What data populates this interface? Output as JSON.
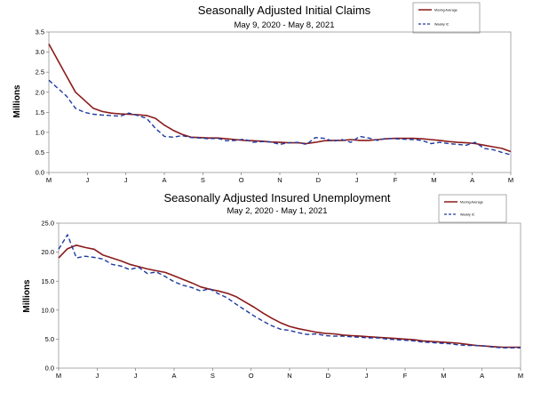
{
  "chart_data": [
    {
      "type": "line",
      "title": "Seasonally Adjusted Initial Claims",
      "subtitle": "May 9, 2020 - May 8, 2021",
      "xlabel": "",
      "ylabel": "Millions",
      "ylim": [
        0,
        3.5
      ],
      "yticks": [
        "0.0",
        "0.5",
        "1.0",
        "1.5",
        "2.0",
        "2.5",
        "3.0",
        "3.5"
      ],
      "ytick_values": [
        0,
        0.5,
        1.0,
        1.5,
        2.0,
        2.5,
        3.0,
        3.5
      ],
      "xticks": [
        "M",
        "J",
        "J",
        "A",
        "S",
        "O",
        "N",
        "D",
        "J",
        "F",
        "M",
        "A",
        "M"
      ],
      "xlim": [
        0,
        52
      ],
      "grid": false,
      "legend": "top-right",
      "colors": {
        "moving_average": "#8b1a1a",
        "weekly": "#1f3a9e"
      },
      "series": [
        {
          "name": "Moving Average",
          "style": "solid",
          "color": "#8b1a1a",
          "x": [
            0,
            1,
            2,
            3,
            4,
            5,
            6,
            7,
            8,
            9,
            10,
            11,
            12,
            13,
            14,
            15,
            16,
            17,
            18,
            19,
            20,
            21,
            22,
            23,
            24,
            25,
            26,
            27,
            28,
            29,
            30,
            31,
            32,
            33,
            34,
            35,
            36,
            37,
            38,
            39,
            40,
            41,
            42,
            43,
            44,
            45,
            46,
            47,
            48,
            49,
            50,
            51,
            52
          ],
          "values": [
            3.2,
            2.8,
            2.4,
            2.0,
            1.8,
            1.6,
            1.52,
            1.48,
            1.46,
            1.45,
            1.44,
            1.42,
            1.35,
            1.18,
            1.05,
            0.95,
            0.88,
            0.87,
            0.86,
            0.86,
            0.84,
            0.82,
            0.8,
            0.79,
            0.78,
            0.76,
            0.75,
            0.74,
            0.74,
            0.72,
            0.75,
            0.79,
            0.8,
            0.8,
            0.82,
            0.8,
            0.8,
            0.82,
            0.84,
            0.85,
            0.85,
            0.85,
            0.84,
            0.82,
            0.8,
            0.77,
            0.75,
            0.74,
            0.72,
            0.68,
            0.64,
            0.6,
            0.52
          ]
        },
        {
          "name": "Weekly IC",
          "style": "dashed",
          "color": "#1f3a9e",
          "x": [
            0,
            1,
            2,
            3,
            4,
            5,
            6,
            7,
            8,
            9,
            10,
            11,
            12,
            13,
            14,
            15,
            16,
            17,
            18,
            19,
            20,
            21,
            22,
            23,
            24,
            25,
            26,
            27,
            28,
            29,
            30,
            31,
            32,
            33,
            34,
            35,
            36,
            37,
            38,
            39,
            40,
            41,
            42,
            43,
            44,
            45,
            46,
            47,
            48,
            49,
            50,
            51,
            52
          ],
          "values": [
            2.3,
            2.1,
            1.9,
            1.6,
            1.5,
            1.45,
            1.43,
            1.42,
            1.4,
            1.48,
            1.42,
            1.35,
            1.1,
            0.9,
            0.88,
            0.92,
            0.87,
            0.86,
            0.84,
            0.85,
            0.79,
            0.8,
            0.83,
            0.75,
            0.77,
            0.76,
            0.7,
            0.74,
            0.75,
            0.7,
            0.87,
            0.85,
            0.78,
            0.82,
            0.75,
            0.9,
            0.86,
            0.8,
            0.85,
            0.84,
            0.83,
            0.82,
            0.8,
            0.72,
            0.75,
            0.72,
            0.7,
            0.68,
            0.75,
            0.6,
            0.57,
            0.5,
            0.44
          ]
        }
      ]
    },
    {
      "type": "line",
      "title": "Seasonally Adjusted Insured Unemployment",
      "subtitle": "May 2, 2020 - May 1, 2021",
      "xlabel": "",
      "ylabel": "Millions",
      "ylim": [
        0,
        25
      ],
      "yticks": [
        "0.0",
        "5.0",
        "10.0",
        "15.0",
        "20.0",
        "25.0"
      ],
      "ytick_values": [
        0,
        5,
        10,
        15,
        20,
        25
      ],
      "xticks": [
        "M",
        "J",
        "J",
        "A",
        "S",
        "O",
        "N",
        "D",
        "J",
        "F",
        "M",
        "A",
        "M"
      ],
      "xlim": [
        0,
        52
      ],
      "grid": false,
      "legend": "top-right",
      "colors": {
        "moving_average": "#8b1a1a",
        "weekly": "#1f3a9e"
      },
      "series": [
        {
          "name": "Moving Average",
          "style": "solid",
          "color": "#8b1a1a",
          "x": [
            0,
            1,
            2,
            3,
            4,
            5,
            6,
            7,
            8,
            9,
            10,
            11,
            12,
            13,
            14,
            15,
            16,
            17,
            18,
            19,
            20,
            21,
            22,
            23,
            24,
            25,
            26,
            27,
            28,
            29,
            30,
            31,
            32,
            33,
            34,
            35,
            36,
            37,
            38,
            39,
            40,
            41,
            42,
            43,
            44,
            45,
            46,
            47,
            48,
            49,
            50,
            51,
            52
          ],
          "values": [
            19.0,
            20.6,
            21.2,
            20.8,
            20.5,
            19.5,
            19.0,
            18.5,
            17.9,
            17.5,
            17.1,
            16.8,
            16.5,
            15.9,
            15.3,
            14.7,
            14.0,
            13.6,
            13.3,
            12.9,
            12.3,
            11.4,
            10.5,
            9.5,
            8.6,
            7.8,
            7.2,
            6.8,
            6.5,
            6.2,
            6.0,
            5.9,
            5.7,
            5.6,
            5.5,
            5.4,
            5.3,
            5.2,
            5.1,
            5.0,
            4.9,
            4.7,
            4.6,
            4.5,
            4.4,
            4.3,
            4.1,
            3.9,
            3.8,
            3.7,
            3.6,
            3.6,
            3.6
          ]
        },
        {
          "name": "Weekly IC",
          "style": "dashed",
          "color": "#1f3a9e",
          "x": [
            0,
            1,
            2,
            3,
            4,
            5,
            6,
            7,
            8,
            9,
            10,
            11,
            12,
            13,
            14,
            15,
            16,
            17,
            18,
            19,
            20,
            21,
            22,
            23,
            24,
            25,
            26,
            27,
            28,
            29,
            30,
            31,
            32,
            33,
            34,
            35,
            36,
            37,
            38,
            39,
            40,
            41,
            42,
            43,
            44,
            45,
            46,
            47,
            48,
            49,
            50,
            51,
            52
          ],
          "values": [
            20.5,
            23.0,
            19.0,
            19.3,
            19.1,
            18.8,
            17.9,
            17.6,
            17.0,
            17.4,
            16.3,
            16.6,
            15.8,
            14.9,
            14.3,
            13.9,
            13.3,
            13.7,
            12.8,
            12.1,
            11.0,
            10.0,
            9.0,
            8.1,
            7.3,
            6.7,
            6.5,
            6.1,
            5.8,
            5.9,
            5.6,
            5.5,
            5.5,
            5.4,
            5.3,
            5.2,
            5.2,
            5.0,
            4.9,
            4.8,
            4.7,
            4.5,
            4.4,
            4.3,
            4.2,
            4.0,
            3.9,
            3.9,
            3.8,
            3.6,
            3.5,
            3.5,
            3.5
          ]
        }
      ]
    }
  ]
}
